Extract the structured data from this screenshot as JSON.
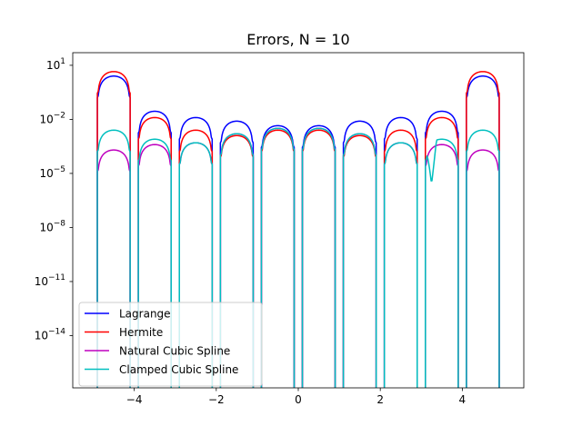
{
  "chart_data": {
    "type": "line",
    "title": "Errors, N = 10",
    "xlabel": "",
    "ylabel": "",
    "xlim": [
      -5.5,
      5.5
    ],
    "y_scale": "log",
    "ylim_exponent": [
      -16.9,
      1.7
    ],
    "grid": false,
    "legend_position": "lower-left",
    "x_ticks": [
      {
        "value": -4,
        "label": "−4"
      },
      {
        "value": -2,
        "label": "−2"
      },
      {
        "value": 0,
        "label": "0"
      },
      {
        "value": 2,
        "label": "2"
      },
      {
        "value": 4,
        "label": "4"
      }
    ],
    "y_ticks": [
      {
        "exponent": 1,
        "label": "10",
        "sup": "1"
      },
      {
        "exponent": -2,
        "label": "10",
        "sup": "−2"
      },
      {
        "exponent": -5,
        "label": "10",
        "sup": "−5"
      },
      {
        "exponent": -8,
        "label": "10",
        "sup": "−8"
      },
      {
        "exponent": -11,
        "label": "10",
        "sup": "−11"
      },
      {
        "exponent": -14,
        "label": "10",
        "sup": "−14"
      }
    ],
    "nodes": [
      -4.9,
      -4.1,
      -3.9,
      -3.1,
      -2.9,
      -2.1,
      -1.9,
      -1.1,
      -0.9,
      -0.1,
      0.1,
      0.9,
      1.1,
      1.9,
      2.1,
      2.9,
      3.1,
      3.9,
      4.1,
      4.9
    ],
    "series": [
      {
        "name": "Lagrange",
        "color": "#0000ff",
        "interval_peak_exponents": [
          0.4,
          -1.55,
          -1.9,
          -2.1,
          -2.35,
          -2.35,
          -2.1,
          -1.9,
          -1.55,
          0.4
        ]
      },
      {
        "name": "Hermite",
        "color": "#ff0000",
        "interval_peak_exponents": [
          0.65,
          -1.9,
          -2.6,
          -2.9,
          -2.6,
          -2.6,
          -2.9,
          -2.6,
          -1.9,
          0.65
        ]
      },
      {
        "name": "Natural Cubic Spline",
        "color": "#bf00bf",
        "interval_peak_exponents": [
          -3.7,
          -3.4,
          -3.3,
          -2.8,
          -2.5,
          -2.5,
          -2.8,
          -3.3,
          -3.4,
          -3.7
        ],
        "dip": {
          "x": 0.0,
          "exponent": -16.0
        }
      },
      {
        "name": "Clamped Cubic Spline",
        "color": "#00bfbf",
        "interval_peak_exponents": [
          -2.6,
          -3.1,
          -3.3,
          -2.8,
          -2.5,
          -2.5,
          -2.8,
          -3.3,
          -3.1,
          -2.6
        ],
        "dip": {
          "x": 3.25,
          "exponent": -5.6
        }
      }
    ]
  }
}
